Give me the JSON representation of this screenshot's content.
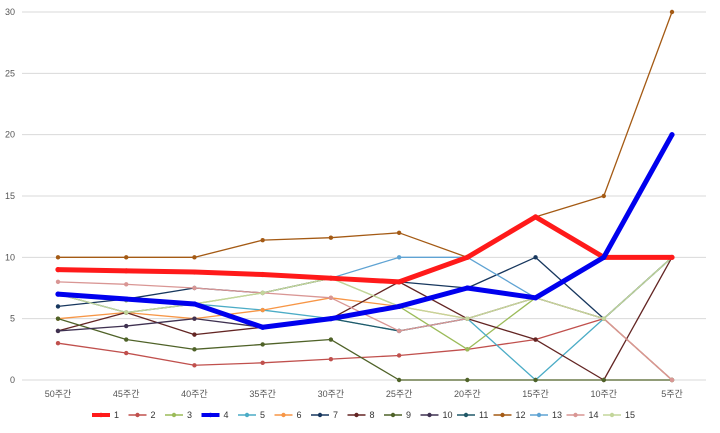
{
  "chart_data": {
    "type": "line",
    "title": "",
    "xlabel": "",
    "ylabel": "",
    "categories": [
      "50주간",
      "45주간",
      "40주간",
      "35주간",
      "30주간",
      "25주간",
      "20주간",
      "15주간",
      "10주간",
      "5주간"
    ],
    "ylim": [
      0,
      30
    ],
    "yticks": [
      0,
      5,
      10,
      15,
      20,
      25,
      30
    ],
    "grid": "horizontal",
    "legend_position": "bottom",
    "series": [
      {
        "name": "1",
        "color": "#ff1a1a",
        "width": 5,
        "values": [
          9,
          8.9,
          8.8,
          8.6,
          8.3,
          8,
          10,
          13.3,
          10,
          10
        ]
      },
      {
        "name": "2",
        "color": "#c0504d",
        "width": 1.3,
        "values": [
          3,
          2.2,
          1.2,
          1.4,
          1.7,
          2,
          2.5,
          3.3,
          5,
          0
        ]
      },
      {
        "name": "3",
        "color": "#9bbb59",
        "width": 1.3,
        "values": [
          7,
          6.5,
          6.2,
          7.1,
          8.3,
          6,
          2.5,
          6.7,
          5,
          10
        ]
      },
      {
        "name": "4",
        "color": "#0000ee",
        "width": 5,
        "values": [
          7,
          6.6,
          6.2,
          4.3,
          5,
          6,
          7.5,
          6.7,
          10,
          20
        ]
      },
      {
        "name": "5",
        "color": "#4bacc6",
        "width": 1.3,
        "values": [
          7,
          6.6,
          6.2,
          5.7,
          5,
          4,
          5,
          0,
          5,
          0
        ]
      },
      {
        "name": "6",
        "color": "#f79646",
        "width": 1.3,
        "values": [
          5,
          5.5,
          5,
          5.7,
          6.7,
          6,
          5,
          6.7,
          5,
          0
        ]
      },
      {
        "name": "7",
        "color": "#17375e",
        "width": 1.3,
        "values": [
          6,
          6.6,
          7.5,
          7.1,
          8.3,
          8,
          7.5,
          10,
          5,
          10
        ]
      },
      {
        "name": "8",
        "color": "#632523",
        "width": 1.3,
        "values": [
          4,
          5.5,
          3.7,
          4.3,
          5,
          8,
          5,
          3.3,
          0,
          10
        ]
      },
      {
        "name": "9",
        "color": "#4f6228",
        "width": 1.3,
        "values": [
          5,
          3.3,
          2.5,
          2.9,
          3.3,
          0,
          0,
          0,
          0,
          0
        ]
      },
      {
        "name": "10",
        "color": "#3f3151",
        "width": 1.3,
        "values": [
          4,
          4.4,
          5,
          4.3,
          5,
          6,
          7.5,
          6.7,
          10,
          10
        ]
      },
      {
        "name": "11",
        "color": "#215968",
        "width": 1.3,
        "values": [
          7,
          5.5,
          6.2,
          4.3,
          5,
          4,
          5,
          6.7,
          5,
          10
        ]
      },
      {
        "name": "12",
        "color": "#a45a14",
        "width": 1.3,
        "values": [
          10,
          10,
          10,
          11.4,
          11.6,
          12,
          10,
          13.3,
          15,
          30
        ]
      },
      {
        "name": "13",
        "color": "#5fa3d3",
        "width": 1.3,
        "values": [
          9,
          8.9,
          8.8,
          8.6,
          8.3,
          10,
          10,
          6.7,
          10,
          10
        ]
      },
      {
        "name": "14",
        "color": "#d99694",
        "width": 1.3,
        "values": [
          8,
          7.8,
          7.5,
          7.1,
          6.7,
          4,
          5,
          6.7,
          5,
          0
        ]
      },
      {
        "name": "15",
        "color": "#c3d69b",
        "width": 1.3,
        "values": [
          7,
          5.5,
          6.2,
          7.1,
          8.3,
          6,
          5,
          6.7,
          5,
          10
        ]
      }
    ]
  }
}
